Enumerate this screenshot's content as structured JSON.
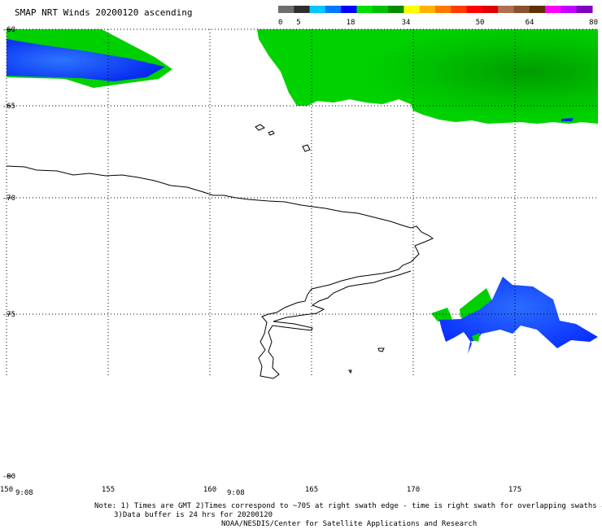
{
  "title": "SMAP NRT Winds 20200120 ascending",
  "colorbar": {
    "tick_labels": [
      "0",
      "5",
      "18",
      "34",
      "50",
      "64",
      "80"
    ],
    "segments": [
      "#6e6e6e",
      "#2e2e2e",
      "#00c8ff",
      "#0078ff",
      "#0000ff",
      "#00e000",
      "#00c000",
      "#008c00",
      "#ffff00",
      "#ffb400",
      "#ff7800",
      "#ff3c00",
      "#ff0000",
      "#e00000",
      "#b07050",
      "#8c5030",
      "#603000",
      "#ff00ff",
      "#c000ff",
      "#8000c0"
    ]
  },
  "axes": {
    "lat_labels": [
      "-60",
      "-65",
      "-70",
      "-75",
      "-80"
    ],
    "lon_labels": [
      "150",
      "155",
      "160",
      "165",
      "170",
      "175"
    ],
    "time_labels": [
      "9:08",
      "9:08"
    ]
  },
  "swath_colors": {
    "green": "#00d000",
    "dark_green": "#00a800",
    "blue": "#0022ff",
    "light_blue": "#1e6bff"
  },
  "notes": {
    "line1": "Note: 1) Times are GMT 2)Times correspond to ~70S at right swath edge - time is right swath for overlapping swaths at ~70S",
    "line2": "3)Data buffer is 24 hrs for 20200120",
    "line3": "NOAA/NESDIS/Center for Satellite Applications and Research"
  }
}
